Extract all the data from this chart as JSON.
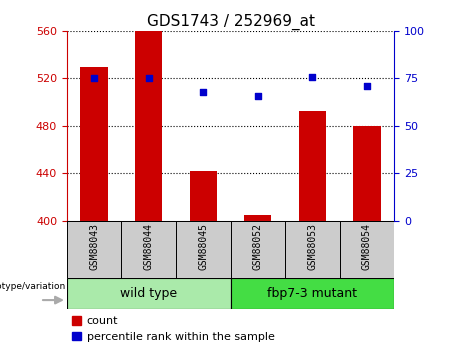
{
  "title": "GDS1743 / 252969_at",
  "samples": [
    "GSM88043",
    "GSM88044",
    "GSM88045",
    "GSM88052",
    "GSM88053",
    "GSM88054"
  ],
  "counts": [
    530,
    560,
    442,
    405,
    493,
    480
  ],
  "percentiles": [
    75,
    75,
    68,
    66,
    76,
    71
  ],
  "ylim_left": [
    400,
    560
  ],
  "ylim_right": [
    0,
    100
  ],
  "yticks_left": [
    400,
    440,
    480,
    520,
    560
  ],
  "yticks_right": [
    0,
    25,
    50,
    75,
    100
  ],
  "bar_color": "#cc0000",
  "scatter_color": "#0000cc",
  "bar_width": 0.5,
  "groups": [
    {
      "label": "wild type",
      "indices": [
        0,
        1,
        2
      ],
      "color": "#aaeaaa"
    },
    {
      "label": "fbp7-3 mutant",
      "indices": [
        3,
        4,
        5
      ],
      "color": "#44dd44"
    }
  ],
  "genotype_label": "genotype/variation",
  "legend_count_label": "count",
  "legend_pct_label": "percentile rank within the sample",
  "left_tick_color": "#cc0000",
  "right_tick_color": "#0000cc",
  "bg_color": "#ffffff",
  "tick_fontsize": 8,
  "title_fontsize": 11,
  "sample_box_color": "#cccccc",
  "sample_text_fontsize": 7,
  "group_label_fontsize": 9,
  "legend_fontsize": 8
}
